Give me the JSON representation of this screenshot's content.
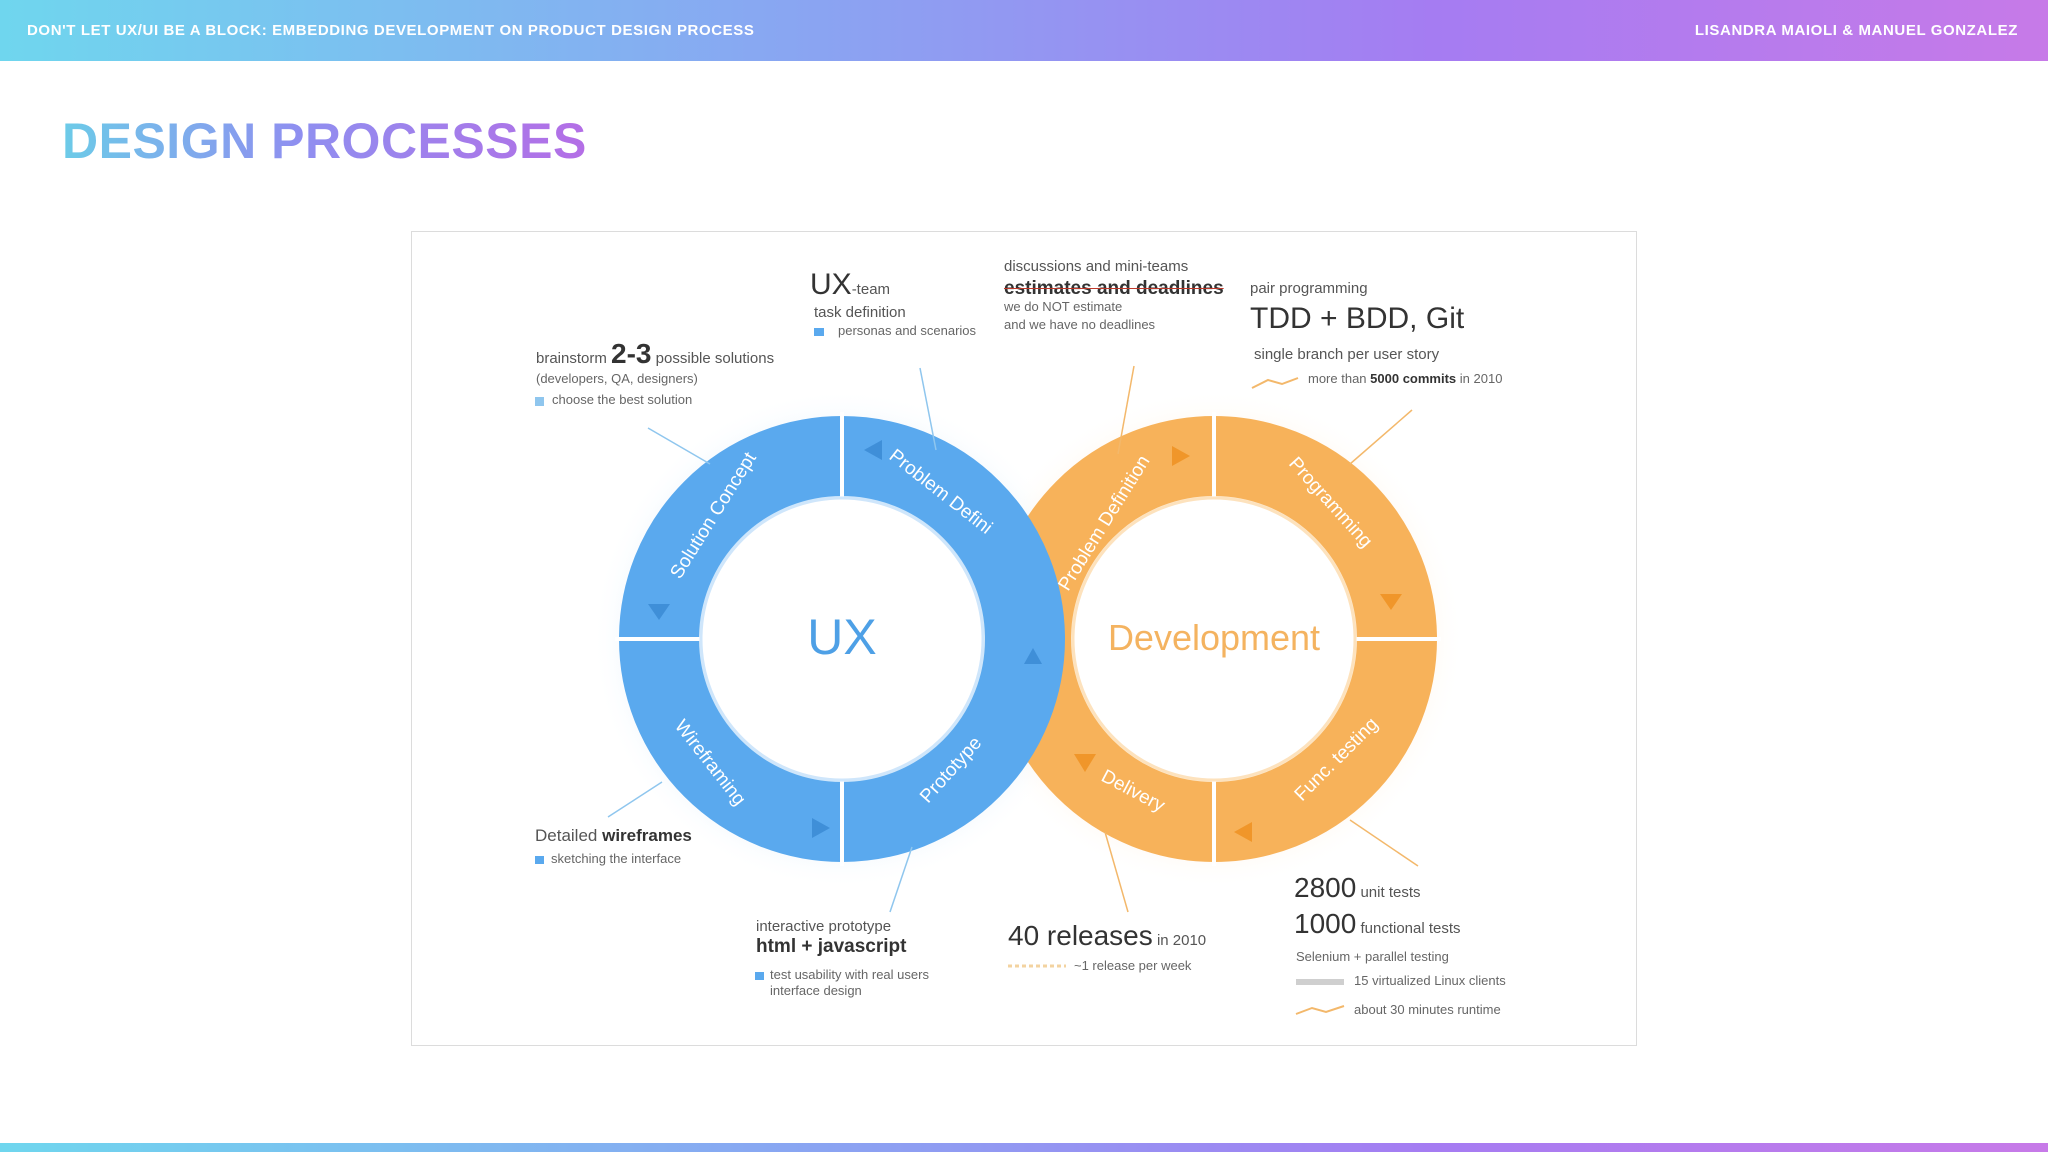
{
  "header": {
    "left_text": "DON'T LET UX/UI BE A BLOCK: EMBEDDING DEVELOPMENT ON PRODUCT DESIGN PROCESS",
    "right_text": "LISANDRA MAIOLI & MANUEL GONZALEZ"
  },
  "slide": {
    "title": "DESIGN PROCESSES"
  },
  "colors": {
    "ux_blue": "#5aa9ee",
    "dev_orange": "#f7b25a",
    "gradient_start": "#6fd6ee",
    "gradient_end": "#c77ae8"
  },
  "diagram": {
    "ux_label": "UX",
    "dev_label": "Development",
    "ux_segments": [
      "Solution Concept",
      "Problem Defini",
      "Prototype",
      "Wireframing"
    ],
    "dev_segments": [
      "Problem Definition",
      "Programming",
      "Func. testing",
      "Delivery"
    ],
    "annotations": {
      "brainstorm": {
        "pre": "brainstorm",
        "num": "2-3",
        "post": "possible solutions",
        "sub": "(developers, QA, designers)",
        "note": "choose the best solution"
      },
      "uxteam": {
        "big": "UX",
        "suffix": "-team",
        "sub": "task definition",
        "note": "personas and scenarios"
      },
      "discussions": {
        "line1": "discussions and mini-teams",
        "line2": "estimates and deadlines",
        "line3": "we do NOT estimate",
        "line4": "and we have no deadlines"
      },
      "pair": {
        "line1": "pair programming",
        "big": "TDD + BDD, Git",
        "line2": "single branch per user story",
        "note_pre": "more than",
        "note_bold": "5000 commits",
        "note_post": "in 2010"
      },
      "wireframes": {
        "pre": "Detailed",
        "bold": "wireframes",
        "note": "sketching the interface"
      },
      "prototype": {
        "line1": "interactive prototype",
        "bold": "html + javascript",
        "note1": "test usability with real users",
        "note2": "interface design"
      },
      "releases": {
        "big": "40 releases",
        "suffix": "in 2010",
        "note": "~1 release per week"
      },
      "tests": {
        "num1": "2800",
        "label1": "unit tests",
        "num2": "1000",
        "label2": "functional tests",
        "line": "Selenium + parallel testing",
        "note1": "15 virtualized Linux clients",
        "note2": "about 30 minutes runtime"
      }
    }
  }
}
